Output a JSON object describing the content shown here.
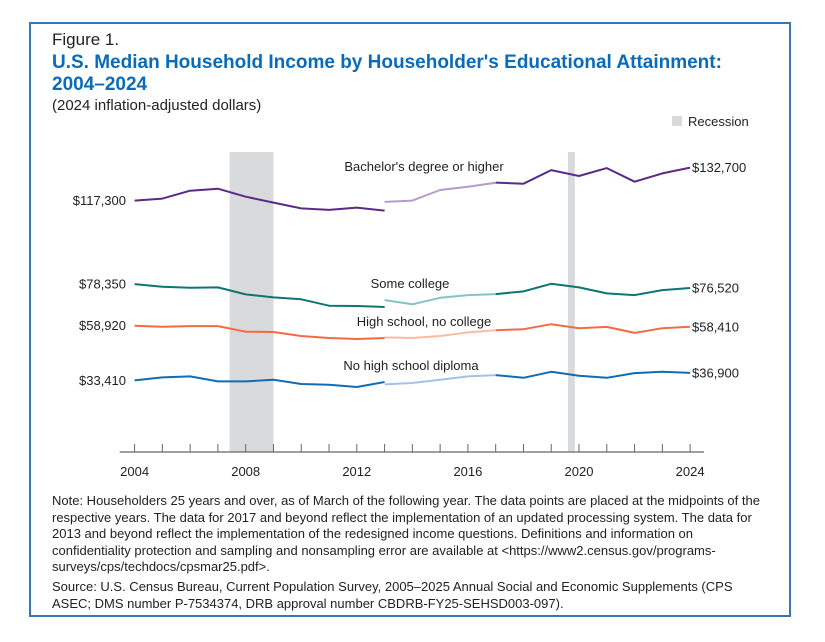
{
  "figure_label": "Figure 1.",
  "title": "U.S. Median Household Income by Householder's Educational Attainment: 2004–2024",
  "subtitle": "(2024 inflation-adjusted dollars)",
  "note": "Note: Householders 25 years and over, as of March of the following year. The data points are placed at the midpoints of the respective years. The data for 2017 and beyond reflect the implementation of an updated processing system. The data for 2013 and beyond reflect the implementation of the redesigned income questions. Definitions and information on confidentiality protection and sampling and nonsampling error are available at <https://www2.census.gov/programs-surveys/cps/techdocs/cpsmar25.pdf>.",
  "source": "Source: U.S. Census Bureau, Current Population Survey, 2005–2025 Annual Social and Economic Supplements (CPS ASEC; DMS number P-7534374, DRB approval number CBDRB-FY25-SEHSD003-097).",
  "chart_data": {
    "type": "line",
    "title": "U.S. Median Household Income by Householder's Educational Attainment: 2004–2024",
    "xlabel": "",
    "ylabel": "",
    "xlim": [
      2003.5,
      2024.5
    ],
    "ylim": [
      0,
      140000
    ],
    "x_ticks_labeled": [
      2004,
      2008,
      2012,
      2016,
      2020,
      2024
    ],
    "x_ticks_minor_every": 1,
    "grid": false,
    "legend": {
      "label": "Recession",
      "placement": "top-right",
      "color": "#d9dadc"
    },
    "recessions": [
      [
        2007.42,
        2009.0
      ],
      [
        2019.6,
        2019.85
      ]
    ],
    "series": [
      {
        "name": "Bachelor's degree or higher",
        "color": "#5b2a86",
        "light_color": "#b39dcc",
        "start_label": "$117,300",
        "end_label": "$132,700",
        "segments": [
          {
            "style": "dark",
            "x": [
              2004,
              2005,
              2006,
              2007,
              2008,
              2009,
              2010,
              2011,
              2012,
              2013
            ],
            "y": [
              117300,
              118230,
              121950,
              122880,
              119160,
              116370,
              113700,
              112970,
              114050,
              112650
            ]
          },
          {
            "style": "light",
            "x": [
              2013,
              2014,
              2015,
              2016,
              2017
            ],
            "y": [
              116700,
              117300,
              122260,
              123800,
              125660
            ]
          },
          {
            "style": "dark",
            "x": [
              2017,
              2018,
              2019,
              2020,
              2021,
              2022,
              2023,
              2024
            ],
            "y": [
              125700,
              125200,
              131570,
              128780,
              132500,
              126130,
              130000,
              132700
            ]
          }
        ]
      },
      {
        "name": "Some college",
        "color": "#0e7571",
        "light_color": "#86c3c6",
        "start_label": "$78,350",
        "end_label": "$76,520",
        "segments": [
          {
            "style": "dark",
            "x": [
              2004,
              2005,
              2006,
              2007,
              2008,
              2009,
              2010,
              2011,
              2012,
              2013
            ],
            "y": [
              78350,
              77100,
              76630,
              76800,
              73560,
              72170,
              71240,
              68260,
              68120,
              67650
            ]
          },
          {
            "style": "light",
            "x": [
              2013,
              2014,
              2015,
              2016,
              2017
            ],
            "y": [
              70910,
              68910,
              71980,
              73240,
              73700
            ]
          },
          {
            "style": "dark",
            "x": [
              2017,
              2018,
              2019,
              2020,
              2021,
              2022,
              2023,
              2024
            ],
            "y": [
              73700,
              74960,
              78500,
              76800,
              74030,
              73240,
              75560,
              76520
            ]
          }
        ]
      },
      {
        "name": "High school, no college",
        "color": "#f26b43",
        "light_color": "#f9bca5",
        "start_label": "$58,920",
        "end_label": "$58,410",
        "segments": [
          {
            "style": "dark",
            "x": [
              2004,
              2005,
              2006,
              2007,
              2008,
              2009,
              2010,
              2011,
              2012,
              2013
            ],
            "y": [
              58920,
              58460,
              58770,
              58770,
              56130,
              55980,
              54120,
              53190,
              52730,
              53190
            ]
          },
          {
            "style": "light",
            "x": [
              2013,
              2014,
              2015,
              2016,
              2017
            ],
            "y": [
              53500,
              53190,
              54120,
              55800,
              56850
            ]
          },
          {
            "style": "dark",
            "x": [
              2017,
              2018,
              2019,
              2020,
              2021,
              2022,
              2023,
              2024
            ],
            "y": [
              56850,
              57310,
              59620,
              57770,
              58390,
              55600,
              57770,
              58410
            ]
          }
        ]
      },
      {
        "name": "No high school diploma",
        "color": "#0f6cb5",
        "light_color": "#a3c3e6",
        "start_label": "$33,410",
        "end_label": "$36,900",
        "segments": [
          {
            "style": "dark",
            "x": [
              2004,
              2005,
              2006,
              2007,
              2008,
              2009,
              2010,
              2011,
              2012,
              2013
            ],
            "y": [
              33410,
              34810,
              35270,
              32940,
              32940,
              33740,
              31730,
              31410,
              30330,
              32660
            ]
          },
          {
            "style": "light",
            "x": [
              2013,
              2014,
              2015,
              2016,
              2017
            ],
            "y": [
              31550,
              32190,
              33740,
              35270,
              35910
            ]
          },
          {
            "style": "dark",
            "x": [
              2017,
              2018,
              2019,
              2020,
              2021,
              2022,
              2023,
              2024
            ],
            "y": [
              35910,
              34650,
              37450,
              35590,
              34650,
              36830,
              37450,
              36900
            ]
          }
        ]
      }
    ]
  }
}
